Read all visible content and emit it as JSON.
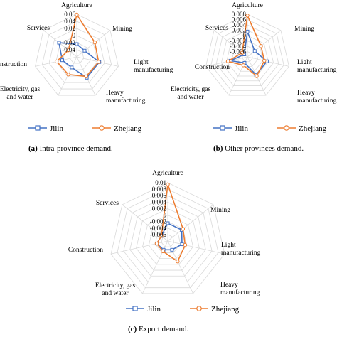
{
  "colors": {
    "jilin": "#4472c4",
    "zhejiang": "#ed7d31",
    "grid": "#d9d9d9",
    "marker_fill": "#ffffff"
  },
  "chart_data": [
    {
      "type": "radar",
      "panel_letter": "(a)",
      "caption": "Intra-province demand.",
      "categories": [
        "Agriculture",
        "Mining",
        "Light manufacturing",
        "Heavy manufacturing",
        "Electricity, gas and water",
        "Construction",
        "Services"
      ],
      "category_labels": [
        [
          "Agriculture"
        ],
        [
          "Mining"
        ],
        [
          "Light",
          "manufacturing"
        ],
        [
          "Heavy",
          "manufacturing"
        ],
        [
          "Electricity, gas",
          "and water"
        ],
        [
          "Construction"
        ],
        [
          "Services"
        ]
      ],
      "radial_ticks": [
        "0.06",
        "0.04",
        "0.02",
        "0",
        "-0.02",
        "-0.04"
      ],
      "rmin": -0.06,
      "rmax": 0.06,
      "rstep": 0.02,
      "series": [
        {
          "name": "Jilin",
          "values": [
            -0.024,
            -0.032,
            0.005,
            0.005,
            -0.027,
            -0.018,
            0.004
          ]
        },
        {
          "name": "Zhejiang",
          "values": [
            0.059,
            0.005,
            0.003,
            0.001,
            -0.005,
            -0.002,
            -0.03
          ]
        }
      ],
      "legend": "bottom"
    },
    {
      "type": "radar",
      "panel_letter": "(b)",
      "caption": "Other provinces demand.",
      "categories": [
        "Agriculture",
        "Mining",
        "Light manufacturing",
        "Heavy manufacturing",
        "Electricity, gas and water",
        "Construction",
        "Services"
      ],
      "category_labels": [
        [
          "Agriculture"
        ],
        [
          "Mining"
        ],
        [
          "Light",
          "manufacturing"
        ],
        [
          "Heavy",
          "manufacturing"
        ],
        [
          "Electricity, gas",
          "and water"
        ],
        [
          "Construction"
        ],
        [
          "Services"
        ]
      ],
      "radial_ticks": [
        "0.008",
        "0.006",
        "0.004",
        "0.002",
        "0",
        "-0.002",
        "-0.004",
        "-0.006"
      ],
      "rmin": -0.008,
      "rmax": 0.008,
      "rstep": 0.002,
      "series": [
        {
          "name": "Jilin",
          "values": [
            0.0015,
            -0.0045,
            -0.0005,
            -0.0005,
            -0.0055,
            -0.0015,
            -0.0065
          ]
        },
        {
          "name": "Zhejiang",
          "values": [
            0.0075,
            -0.0015,
            -0.0015,
            0.0,
            -0.0045,
            -0.0005,
            -0.0055
          ]
        }
      ],
      "legend": "bottom"
    },
    {
      "type": "radar",
      "panel_letter": "(c)",
      "caption": "Export demand.",
      "categories": [
        "Agriculture",
        "Mining",
        "Light manufacturing",
        "Heavy manufacturing",
        "Electricity, gas and water",
        "Construction",
        "Services"
      ],
      "category_labels": [
        [
          "Agriculture"
        ],
        [
          "Mining"
        ],
        [
          "Light",
          "manufacturing"
        ],
        [
          "Heavy",
          "manufacturing"
        ],
        [
          "Electricity, gas",
          "and water"
        ],
        [
          "Construction"
        ],
        [
          "Services"
        ]
      ],
      "radial_ticks": [
        "0.01",
        "0.008",
        "0.006",
        "0.004",
        "0.002",
        "0",
        "-0.002",
        "-0.004",
        "-0.006"
      ],
      "rmin": -0.008,
      "rmax": 0.01,
      "rstep": 0.002,
      "series": [
        {
          "name": "Jilin",
          "values": [
            -0.0025,
            -0.0025,
            -0.0035,
            -0.005,
            -0.005,
            -0.0045,
            -0.0055
          ]
        },
        {
          "name": "Zhejiang",
          "values": [
            0.0095,
            -0.002,
            -0.0025,
            -0.001,
            -0.0045,
            -0.0045,
            -0.0055
          ]
        }
      ],
      "legend": "bottom"
    }
  ]
}
